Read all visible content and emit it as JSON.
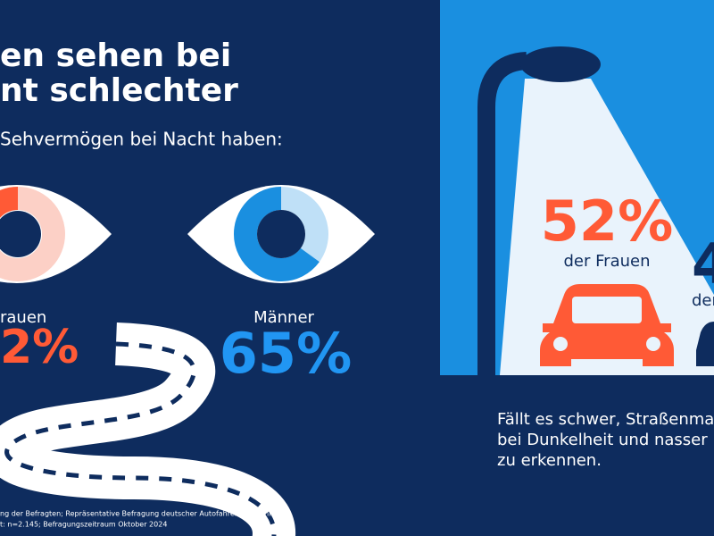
{
  "headline": {
    "lines": [
      "en sehen bei",
      "nt schlechter"
    ],
    "subtitle": "Sehvermögen bei Nacht haben:"
  },
  "eyes": [
    {
      "label": "rauen",
      "value_label": "2%"
    },
    {
      "label": "Männer",
      "value": 65,
      "value_label": "65%"
    }
  ],
  "lamp_panel": {
    "value_label": "52%",
    "label": "der Frauen",
    "second_value_label": "4",
    "second_label": "der"
  },
  "question": [
    "Fällt es schwer, Straßenmark",
    "bei Dunkelheit und nasser F",
    "zu erkennen."
  ],
  "footnote": [
    "ng der Befragten; Repräsentative Befragung deutscher Autofahrer durch infas",
    "t: n=2.145; Befragungszeitraum Oktober 2024"
  ]
}
